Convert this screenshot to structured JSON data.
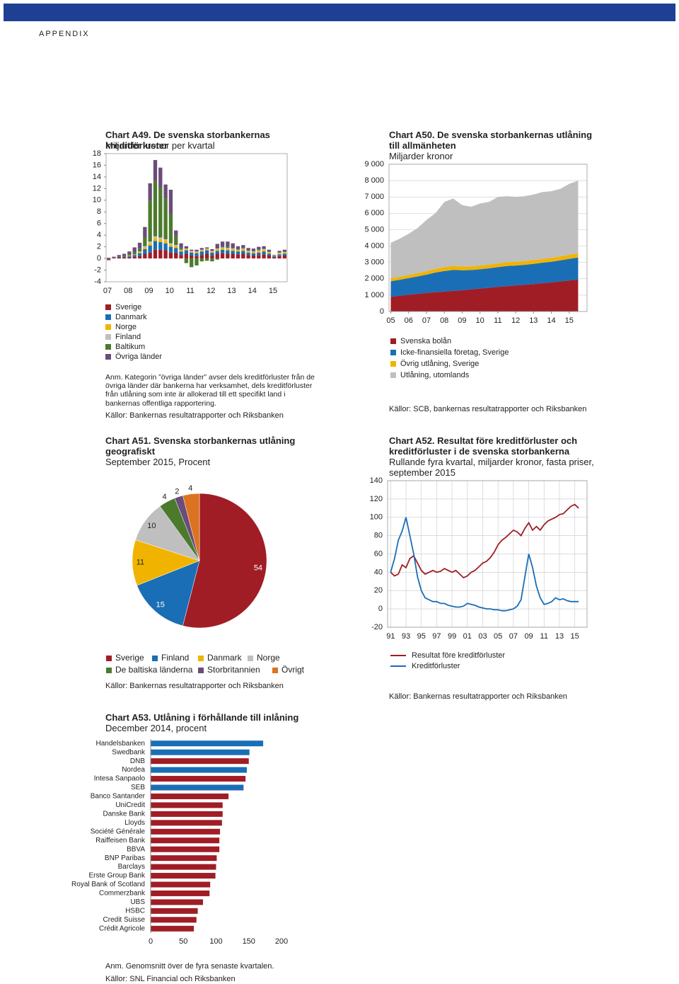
{
  "header": {
    "label": "APPENDIX"
  },
  "chart_data": [
    {
      "type": "bar",
      "title": "Chart A49. De svenska storbankernas kreditförluster",
      "subtitle": "Miljarder kronor per kvartal",
      "note": "Anm. Kategorin ”övriga länder” avser dels kreditförluster från de övriga länder där bankerna har verksamhet, dels kreditförluster från utlåning som inte är allokerad till ett specifikt land i bankernas offentliga rapportering.",
      "source": "Källor: Bankernas resultatrapporter och Riksbanken",
      "categories": [
        "07",
        null,
        null,
        null,
        "08",
        null,
        null,
        null,
        "09",
        null,
        null,
        null,
        "10",
        null,
        null,
        null,
        "11",
        null,
        null,
        null,
        "12",
        null,
        null,
        null,
        "13",
        null,
        null,
        null,
        "14",
        null,
        null,
        null,
        "15",
        null,
        null
      ],
      "ylim": [
        -4,
        18
      ],
      "yticks": [
        -4,
        -2,
        0,
        2,
        4,
        6,
        8,
        10,
        12,
        14,
        16,
        18
      ],
      "series": [
        {
          "name": "Sverige",
          "color": "#a01d26",
          "values": [
            0.1,
            0.1,
            0.2,
            0.2,
            0.2,
            0.3,
            0.4,
            0.8,
            1.0,
            1.5,
            1.5,
            1.4,
            1.0,
            1.0,
            0.6,
            0.8,
            0.5,
            0.4,
            0.6,
            0.8,
            0.5,
            0.8,
            0.9,
            0.8,
            0.8,
            0.7,
            0.8,
            0.6,
            0.5,
            0.6,
            0.7,
            0.5,
            0.2,
            0.4,
            0.5
          ]
        },
        {
          "name": "Danmark",
          "color": "#1a6eb5",
          "values": [
            0,
            0.1,
            0.1,
            0.1,
            0.2,
            0.3,
            0.5,
            0.8,
            1.2,
            1.5,
            1.3,
            1.2,
            1.0,
            0.8,
            0.6,
            0.6,
            0.5,
            0.5,
            0.6,
            0.6,
            0.5,
            0.5,
            0.6,
            0.6,
            0.5,
            0.5,
            0.5,
            0.4,
            0.4,
            0.4,
            0.5,
            0.3,
            0.2,
            0.3,
            0.3
          ]
        },
        {
          "name": "Norge",
          "color": "#f0b400",
          "values": [
            0,
            0,
            0,
            0,
            0.1,
            0.1,
            0.2,
            0.3,
            0.4,
            0.5,
            0.5,
            0.5,
            0.4,
            0.3,
            0.2,
            0.2,
            0.2,
            0.2,
            0.2,
            0.2,
            0.2,
            0.3,
            0.3,
            0.3,
            0.3,
            0.2,
            0.3,
            0.2,
            0.2,
            0.3,
            0.3,
            0.2,
            0.1,
            0.2,
            0.2
          ]
        },
        {
          "name": "Finland",
          "color": "#bfbfbf",
          "values": [
            0,
            0,
            0,
            0,
            0,
            0,
            0.1,
            0.2,
            0.3,
            0.3,
            0.3,
            0.2,
            0.2,
            0.2,
            0.1,
            0.1,
            0.1,
            0.1,
            0.1,
            0.1,
            0.1,
            0.1,
            0.1,
            0.1,
            0.1,
            0.1,
            0.1,
            0.1,
            0.1,
            0.1,
            0.1,
            0.1,
            0,
            0.1,
            0.1
          ]
        },
        {
          "name": "Baltikum",
          "color": "#4c7a2d",
          "values": [
            0,
            0,
            0.1,
            0.1,
            0.2,
            0.3,
            0.5,
            1.5,
            7.0,
            9.5,
            8.5,
            7.0,
            5.0,
            1.5,
            0.3,
            -0.8,
            -1.5,
            -1.2,
            -0.5,
            -0.4,
            -0.5,
            -0.2,
            0.1,
            0.2,
            0.1,
            0.1,
            0.1,
            0.1,
            0.1,
            0.1,
            0.1,
            0.1,
            0,
            0,
            0.1
          ]
        },
        {
          "name": "Övriga länder",
          "color": "#6b4c7a",
          "values": [
            -0.3,
            0.1,
            0.2,
            0.4,
            0.5,
            0.9,
            1.0,
            1.8,
            3.0,
            3.6,
            3.5,
            2.4,
            4.2,
            1.0,
            0.8,
            0.4,
            0.2,
            0.3,
            0.3,
            0.2,
            0.3,
            0.8,
            0.9,
            0.9,
            0.8,
            0.5,
            0.5,
            0.4,
            0.4,
            0.5,
            0.4,
            0.3,
            0.1,
            0.3,
            0.3
          ]
        }
      ]
    },
    {
      "type": "area",
      "title": "Chart A50. De svenska storbankernas utlåning till allmänheten",
      "subtitle": "Miljarder kronor",
      "source": "Källor: SCB, bankernas resultatrapporter och Riksbanken",
      "x": [
        2005,
        2005.5,
        2006,
        2006.5,
        2007,
        2007.5,
        2008,
        2008.5,
        2009,
        2009.5,
        2010,
        2010.5,
        2011,
        2011.5,
        2012,
        2012.5,
        2013,
        2013.5,
        2014,
        2014.5,
        2015,
        2015.5
      ],
      "xlim": [
        2004.9,
        2016
      ],
      "xticks": [
        {
          "value": 2005,
          "label": "05"
        },
        {
          "value": 2006,
          "label": "06"
        },
        {
          "value": 2007,
          "label": "07"
        },
        {
          "value": 2008,
          "label": "08"
        },
        {
          "value": 2009,
          "label": "09"
        },
        {
          "value": 2010,
          "label": "10"
        },
        {
          "value": 2011,
          "label": "11"
        },
        {
          "value": 2012,
          "label": "12"
        },
        {
          "value": 2013,
          "label": "13"
        },
        {
          "value": 2014,
          "label": "14"
        },
        {
          "value": 2015,
          "label": "15"
        }
      ],
      "ylim": [
        0,
        9000
      ],
      "yticks": [
        0,
        {
          "value": 1000,
          "label": "1 000"
        },
        {
          "value": 2000,
          "label": "2 000"
        },
        {
          "value": 3000,
          "label": "3 000"
        },
        {
          "value": 4000,
          "label": "4 000"
        },
        {
          "value": 5000,
          "label": "5 000"
        },
        {
          "value": 6000,
          "label": "6 000"
        },
        {
          "value": 7000,
          "label": "7 000"
        },
        {
          "value": 8000,
          "label": "8 000"
        },
        {
          "value": 9000,
          "label": "9 000"
        }
      ],
      "grid": true,
      "series": [
        {
          "name": "Svenska bolån",
          "color": "#a01d26",
          "values": [
            900,
            960,
            1020,
            1080,
            1130,
            1180,
            1220,
            1260,
            1300,
            1350,
            1400,
            1450,
            1500,
            1550,
            1590,
            1630,
            1680,
            1730,
            1780,
            1840,
            1900,
            1960
          ]
        },
        {
          "name": "Icke-finansiella företag, Sverige",
          "color": "#1a6eb5",
          "values": [
            950,
            980,
            1020,
            1060,
            1120,
            1200,
            1250,
            1280,
            1220,
            1180,
            1180,
            1190,
            1210,
            1230,
            1220,
            1220,
            1230,
            1250,
            1260,
            1290,
            1320,
            1340
          ]
        },
        {
          "name": "Övrig utlåning, Sverige",
          "color": "#f0b400",
          "values": [
            180,
            180,
            190,
            200,
            210,
            230,
            240,
            250,
            240,
            230,
            230,
            230,
            230,
            230,
            230,
            230,
            230,
            230,
            240,
            240,
            250,
            250
          ]
        },
        {
          "name": "Utlåning, utomlands",
          "color": "#bfbfbf",
          "values": [
            2170,
            2330,
            2520,
            2760,
            3140,
            3390,
            3990,
            4110,
            3740,
            3640,
            3790,
            3830,
            4060,
            4040,
            3960,
            3970,
            4010,
            4090,
            4070,
            4130,
            4330,
            4450
          ]
        }
      ]
    },
    {
      "type": "pie",
      "title": "Chart A51. Svenska storbankernas utlåning geografiskt",
      "subtitle": "September 2015, Procent",
      "source": "Källor: Bankernas resultatrapporter och Riksbanken",
      "categories": [
        "Sverige",
        "Finland",
        "Danmark",
        "Norge",
        "De baltiska länderna",
        "Storbritannien",
        "Övrigt"
      ],
      "values": [
        54,
        15,
        11,
        10,
        4,
        2,
        4
      ],
      "colors": [
        "#a01d26",
        "#1a6eb5",
        "#f0b400",
        "#bfbfbf",
        "#4c7a2d",
        "#6b4c7a",
        "#dc7320"
      ]
    },
    {
      "type": "line",
      "title": "Chart A52. Resultat före kreditförluster och kreditförluster i de svenska storbankerna",
      "subtitle": "Rullande fyra kvartal, miljarder kronor, fasta priser, september 2015",
      "source": "Källor: Bankernas resultatrapporter och Riksbanken",
      "x": [
        1991,
        1991.5,
        1992,
        1992.5,
        1993,
        1993.5,
        1994,
        1994.5,
        1995,
        1995.5,
        1996,
        1996.5,
        1997,
        1997.5,
        1998,
        1998.5,
        1999,
        1999.5,
        2000,
        2000.5,
        2001,
        2001.5,
        2002,
        2002.5,
        2003,
        2003.5,
        2004,
        2004.5,
        2005,
        2005.5,
        2006,
        2006.5,
        2007,
        2007.5,
        2008,
        2008.5,
        2009,
        2009.5,
        2010,
        2010.5,
        2011,
        2011.5,
        2012,
        2012.5,
        2013,
        2013.5,
        2014,
        2014.5,
        2015,
        2015.5
      ],
      "xlim": [
        1990.6,
        2016.6
      ],
      "xticks": [
        {
          "value": 1991,
          "label": "91"
        },
        {
          "value": 1993,
          "label": "93"
        },
        {
          "value": 1995,
          "label": "95"
        },
        {
          "value": 1997,
          "label": "97"
        },
        {
          "value": 1999,
          "label": "99"
        },
        {
          "value": 2001,
          "label": "01"
        },
        {
          "value": 2003,
          "label": "03"
        },
        {
          "value": 2005,
          "label": "05"
        },
        {
          "value": 2007,
          "label": "07"
        },
        {
          "value": 2009,
          "label": "09"
        },
        {
          "value": 2011,
          "label": "11"
        },
        {
          "value": 2013,
          "label": "13"
        },
        {
          "value": 2015,
          "label": "15"
        }
      ],
      "ylim": [
        -20,
        140
      ],
      "yticks": [
        -20,
        0,
        20,
        40,
        60,
        80,
        100,
        120,
        140
      ],
      "grid": true,
      "series": [
        {
          "name": "Resultat före kreditförluster",
          "color": "#a01d26",
          "values": [
            40,
            36,
            38,
            48,
            45,
            55,
            58,
            50,
            42,
            38,
            40,
            42,
            40,
            41,
            44,
            42,
            40,
            42,
            38,
            34,
            36,
            40,
            42,
            46,
            50,
            52,
            56,
            62,
            70,
            75,
            78,
            82,
            86,
            84,
            80,
            88,
            94,
            86,
            90,
            86,
            92,
            96,
            98,
            100,
            103,
            104,
            108,
            112,
            114,
            110
          ]
        },
        {
          "name": "Kreditförluster",
          "color": "#1a6eb5",
          "values": [
            40,
            55,
            75,
            85,
            100,
            80,
            60,
            35,
            20,
            12,
            10,
            8,
            8,
            6,
            6,
            4,
            3,
            2,
            2,
            3,
            6,
            5,
            4,
            2,
            1,
            0,
            0,
            -1,
            -1,
            -2,
            -2,
            -1,
            0,
            3,
            10,
            35,
            60,
            45,
            25,
            12,
            5,
            6,
            8,
            12,
            10,
            11,
            9,
            8,
            8,
            8
          ]
        }
      ]
    },
    {
      "type": "hbar",
      "title": "Chart A53. Utlåning i förhållande till inlåning",
      "subtitle": "December 2014, procent",
      "note": "Anm. Genomsnitt över de fyra senaste kvartalen.",
      "source": "Källor: SNL Financial och Riksbanken",
      "categories": [
        "Handelsbanken",
        "Swedbank",
        "DNB",
        "Nordea",
        "Intesa Sanpaolo",
        "SEB",
        "Banco Santander",
        "UniCredit",
        "Danske Bank",
        "Lloyds",
        "Société Générale",
        "Raiffeisen Bank",
        "BBVA",
        "BNP Paribas",
        "Barclays",
        "Erste Group Bank",
        "Royal Bank of Scotland",
        "Commerzbank",
        "UBS",
        "HSBC",
        "Credit Suisse",
        "Crédit Agricole"
      ],
      "values": [
        172,
        151,
        150,
        147,
        145,
        142,
        119,
        110,
        110,
        109,
        106,
        105,
        105,
        101,
        100,
        99,
        91,
        90,
        80,
        72,
        70,
        66
      ],
      "colors": [
        "#1a6eb5",
        "#1a6eb5",
        "#a01d26",
        "#1a6eb5",
        "#a01d26",
        "#1a6eb5",
        "#a01d26",
        "#a01d26",
        "#a01d26",
        "#a01d26",
        "#a01d26",
        "#a01d26",
        "#a01d26",
        "#a01d26",
        "#a01d26",
        "#a01d26",
        "#a01d26",
        "#a01d26",
        "#a01d26",
        "#a01d26",
        "#a01d26",
        "#a01d26"
      ],
      "xlim": [
        0,
        200
      ],
      "xticks": [
        0,
        50,
        100,
        150,
        200
      ]
    }
  ]
}
